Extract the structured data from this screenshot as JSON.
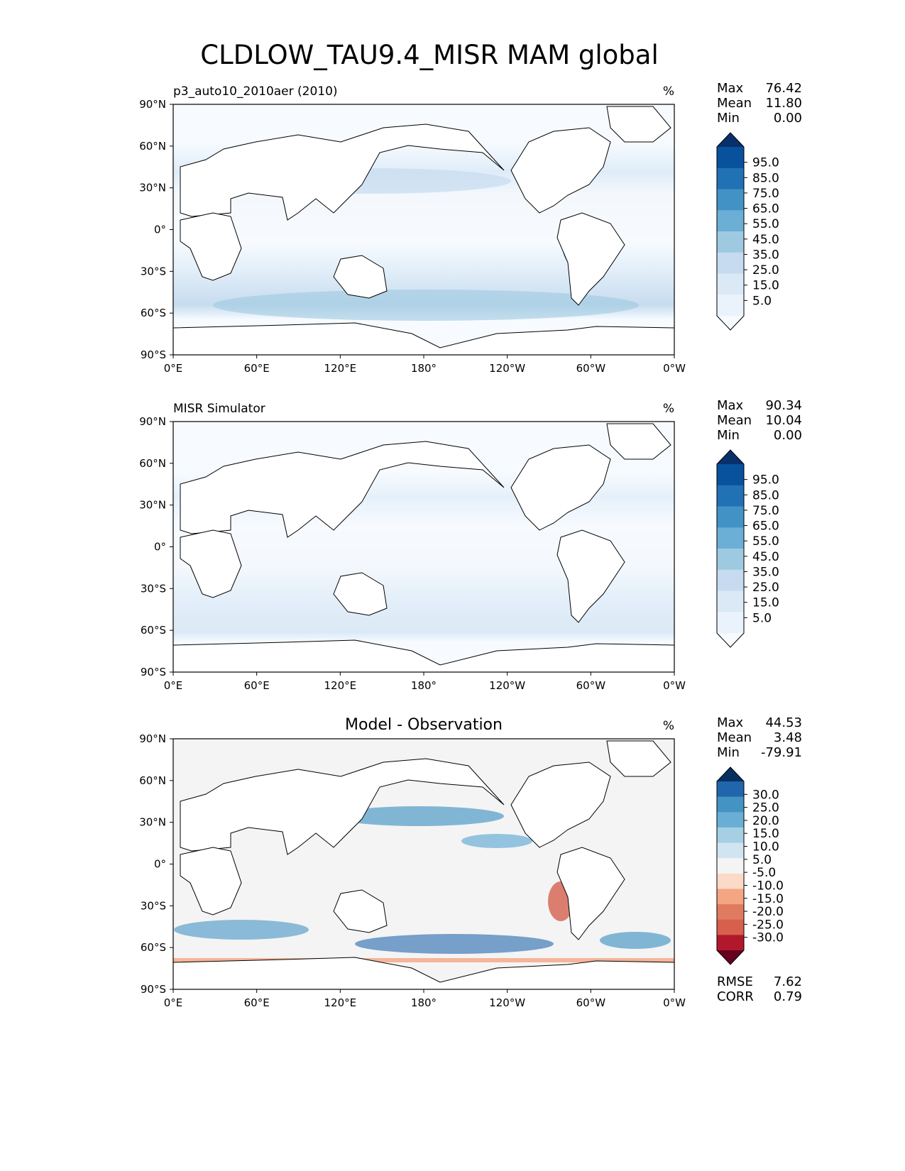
{
  "title": "CLDLOW_TAU9.4_MISR MAM global",
  "panels": [
    {
      "title_left": "p3_auto10_2010aer (2010)",
      "title_center": "",
      "units": "%",
      "stats": [
        [
          "Max",
          "76.42"
        ],
        [
          "Mean",
          "11.80"
        ],
        [
          "Min",
          "0.00"
        ]
      ],
      "colorbar": {
        "labels": [
          "95.0",
          "85.0",
          "75.0",
          "65.0",
          "55.0",
          "45.0",
          "35.0",
          "25.0",
          "15.0",
          "5.0"
        ],
        "colors": [
          "#08306b",
          "#08519c",
          "#2171b5",
          "#4292c6",
          "#6baed6",
          "#9ecae1",
          "#c6dbef",
          "#dbe9f6",
          "#eaf2fb",
          "#f7fbff"
        ]
      }
    },
    {
      "title_left": "MISR Simulator",
      "title_center": "",
      "units": "%",
      "stats": [
        [
          "Max",
          "90.34"
        ],
        [
          "Mean",
          "10.04"
        ],
        [
          "Min",
          "0.00"
        ]
      ],
      "colorbar": {
        "labels": [
          "95.0",
          "85.0",
          "75.0",
          "65.0",
          "55.0",
          "45.0",
          "35.0",
          "25.0",
          "15.0",
          "5.0"
        ],
        "colors": [
          "#08306b",
          "#08519c",
          "#2171b5",
          "#4292c6",
          "#6baed6",
          "#9ecae1",
          "#c6dbef",
          "#dbe9f6",
          "#eaf2fb",
          "#f7fbff"
        ]
      }
    },
    {
      "title_left": "",
      "title_center": "Model - Observation",
      "units": "%",
      "stats": [
        [
          "Max",
          "44.53"
        ],
        [
          "Mean",
          "3.48"
        ],
        [
          "Min",
          "-79.91"
        ]
      ],
      "colorbar": {
        "labels": [
          "30.0",
          "25.0",
          "20.0",
          "15.0",
          "10.0",
          "5.0",
          "-5.0",
          "-10.0",
          "-15.0",
          "-20.0",
          "-25.0",
          "-30.0"
        ],
        "colors": [
          "#053061",
          "#2166ac",
          "#4393c3",
          "#6aaed6",
          "#a6cfe4",
          "#d1e5f0",
          "#f4f4f4",
          "#fbdbc7",
          "#f4a582",
          "#e07b62",
          "#d6604d",
          "#b2182b",
          "#67001f"
        ]
      },
      "footer": [
        [
          "RMSE",
          "7.62"
        ],
        [
          "CORR",
          "0.79"
        ]
      ]
    }
  ],
  "axes": {
    "yticks": [
      "90°N",
      "60°N",
      "30°N",
      "0°",
      "30°S",
      "60°S",
      "90°S"
    ],
    "xticks": [
      "0°E",
      "60°E",
      "120°E",
      "180°",
      "120°W",
      "60°W",
      "0°W"
    ]
  },
  "chart_data": [
    {
      "type": "heatmap",
      "title": "p3_auto10_2010aer (2010)",
      "units": "%",
      "xlim": [
        0,
        360
      ],
      "ylim": [
        -90,
        90
      ],
      "max": 76.42,
      "mean": 11.8,
      "min": 0.0,
      "levels": [
        5,
        15,
        25,
        35,
        45,
        55,
        65,
        75,
        85,
        95
      ]
    },
    {
      "type": "heatmap",
      "title": "MISR Simulator",
      "units": "%",
      "xlim": [
        0,
        360
      ],
      "ylim": [
        -90,
        90
      ],
      "max": 90.34,
      "mean": 10.04,
      "min": 0.0,
      "levels": [
        5,
        15,
        25,
        35,
        45,
        55,
        65,
        75,
        85,
        95
      ]
    },
    {
      "type": "heatmap",
      "title": "Model - Observation",
      "units": "%",
      "xlim": [
        0,
        360
      ],
      "ylim": [
        -90,
        90
      ],
      "max": 44.53,
      "mean": 3.48,
      "min": -79.91,
      "rmse": 7.62,
      "corr": 0.79,
      "levels": [
        -30,
        -25,
        -20,
        -15,
        -10,
        -5,
        5,
        10,
        15,
        20,
        25,
        30
      ]
    }
  ]
}
